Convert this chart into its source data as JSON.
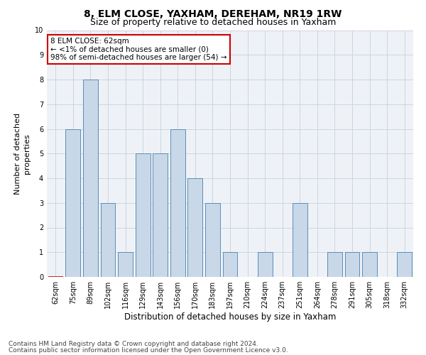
{
  "title": "8, ELM CLOSE, YAXHAM, DEREHAM, NR19 1RW",
  "subtitle": "Size of property relative to detached houses in Yaxham",
  "xlabel": "Distribution of detached houses by size in Yaxham",
  "ylabel": "Number of detached\nproperties",
  "categories": [
    "62sqm",
    "75sqm",
    "89sqm",
    "102sqm",
    "116sqm",
    "129sqm",
    "143sqm",
    "156sqm",
    "170sqm",
    "183sqm",
    "197sqm",
    "210sqm",
    "224sqm",
    "237sqm",
    "251sqm",
    "264sqm",
    "278sqm",
    "291sqm",
    "305sqm",
    "318sqm",
    "332sqm"
  ],
  "values": [
    0,
    6,
    8,
    3,
    1,
    5,
    5,
    6,
    4,
    3,
    1,
    0,
    1,
    0,
    3,
    0,
    1,
    1,
    1,
    0,
    1
  ],
  "highlight_index": 0,
  "bar_color": "#c8d8e8",
  "bar_edge_color": "#5b8db8",
  "highlight_bar_edge_color": "#cc0000",
  "annotation_box_edge_color": "#cc0000",
  "annotation_lines": [
    "8 ELM CLOSE: 62sqm",
    "← <1% of detached houses are smaller (0)",
    "98% of semi-detached houses are larger (54) →"
  ],
  "ylim": [
    0,
    10
  ],
  "yticks": [
    0,
    1,
    2,
    3,
    4,
    5,
    6,
    7,
    8,
    9,
    10
  ],
  "footer_line1": "Contains HM Land Registry data © Crown copyright and database right 2024.",
  "footer_line2": "Contains public sector information licensed under the Open Government Licence v3.0.",
  "background_color": "#eef2f7",
  "grid_color": "#c8d0da",
  "title_fontsize": 10,
  "subtitle_fontsize": 9,
  "xlabel_fontsize": 8.5,
  "ylabel_fontsize": 8,
  "tick_fontsize": 7,
  "annotation_fontsize": 7.5,
  "footer_fontsize": 6.5
}
